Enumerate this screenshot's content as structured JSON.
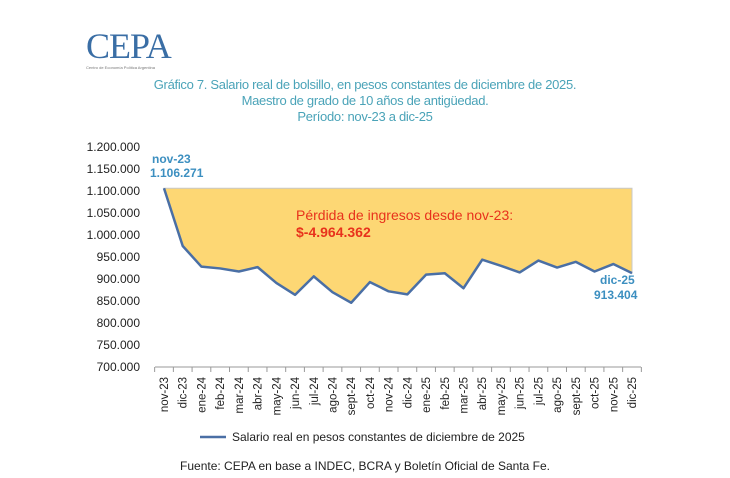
{
  "logo": {
    "text": "CEPA",
    "subtitle": "Centro de Economía Política Argentina"
  },
  "chart_data": {
    "type": "area",
    "title": "Gráfico 7. Salario real de bolsillo, en pesos constantes de diciembre de 2025.",
    "subtitle": [
      "Maestro de grado de 10 años de antigüedad.",
      "Período: nov-23 a dic-25"
    ],
    "categories": [
      "nov-23",
      "dic-23",
      "ene-24",
      "feb-24",
      "mar-24",
      "abr-24",
      "may-24",
      "jun-24",
      "jul-24",
      "ago-24",
      "sept-24",
      "oct-24",
      "nov-24",
      "dic-24",
      "ene-25",
      "feb-25",
      "mar-25",
      "abr-25",
      "may-25",
      "jun-25",
      "jul-25",
      "ago-25",
      "sept-25",
      "oct-25",
      "nov-25",
      "dic-25"
    ],
    "series": [
      {
        "name": "Salario real en pesos constantes de diciembre de 2025",
        "color": "#4a6fa5",
        "values": [
          1106271,
          975000,
          928000,
          924000,
          917000,
          927000,
          891000,
          864000,
          906000,
          870000,
          846000,
          893000,
          872000,
          865000,
          910000,
          913000,
          879000,
          944000,
          930000,
          915000,
          942000,
          926000,
          939000,
          917000,
          934000,
          913404
        ]
      }
    ],
    "fill_color": "#fdd774",
    "ylim": [
      700000,
      1200000
    ],
    "yticks": [
      "700.000",
      "750.000",
      "800.000",
      "850.000",
      "900.000",
      "950.000",
      "1.000.000",
      "1.050.000",
      "1.100.000",
      "1.150.000",
      "1.200.000"
    ],
    "grid": false,
    "legend": "bottom",
    "annotations": {
      "start": {
        "label": "nov-23",
        "value": "1.106.271"
      },
      "end": {
        "label": "dic-25",
        "value": "913.404"
      },
      "loss_label": "Pérdida  de ingresos desde nov-23:",
      "loss_value": "$-4.964.362"
    }
  },
  "source": "Fuente: CEPA en base a INDEC, BCRA y Boletín Oficial de Santa Fe."
}
